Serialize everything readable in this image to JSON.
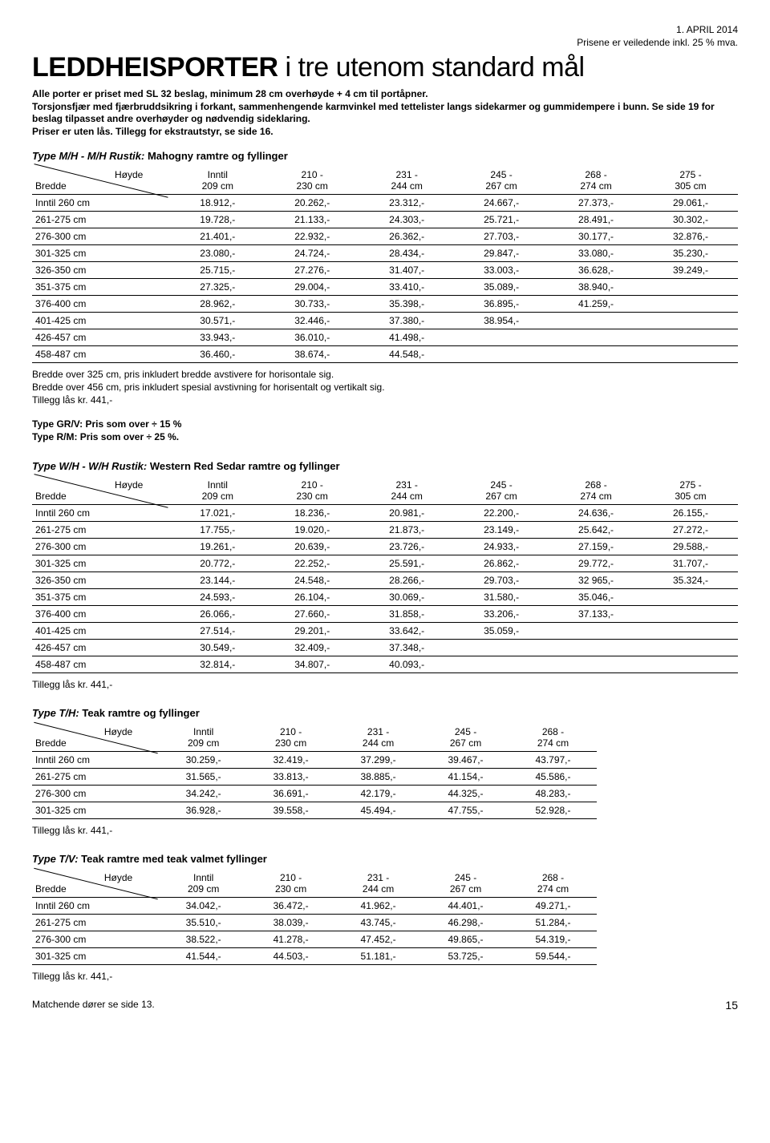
{
  "header": {
    "date": "1. APRIL 2014",
    "priceNote": "Prisene er veiledende inkl. 25 % mva."
  },
  "title": {
    "strong": "LEDDHEISPORTER",
    "rest": " i tre utenom standard mål"
  },
  "intro": [
    "Alle porter er priset med SL 32 beslag, minimum 28 cm overhøyde + 4 cm til portåpner.",
    "Torsjonsfjær med fjærbruddsikring i forkant, sammenhengende karmvinkel med tettelister langs sidekarmer og gummidempere i bunn. Se side 19 for beslag tilpasset andre overhøyder og nødvendig sideklaring.",
    "Priser er uten lås.  Tillegg for ekstrautstyr, se side 16."
  ],
  "tables": {
    "mh": {
      "title_bold": "Type M/H - M/H Rustik:",
      "title_rest": " Mahogny ramtre og fyllinger",
      "cols": [
        {
          "l1": "Høyde",
          "l2": "Bredde"
        },
        {
          "l1": "Inntil",
          "l2": "209 cm"
        },
        {
          "l1": "210 -",
          "l2": "230 cm"
        },
        {
          "l1": "231 -",
          "l2": "244 cm"
        },
        {
          "l1": "245 -",
          "l2": "267 cm"
        },
        {
          "l1": "268 -",
          "l2": "274 cm"
        },
        {
          "l1": "275 -",
          "l2": "305 cm"
        }
      ],
      "rows": [
        [
          "Inntil 260 cm",
          "18.912,-",
          "20.262,-",
          "23.312,-",
          "24.667,-",
          "27.373,-",
          "29.061,-"
        ],
        [
          "261-275 cm",
          "19.728,-",
          "21.133,-",
          "24.303,-",
          "25.721,-",
          "28.491,-",
          "30.302,-"
        ],
        [
          "276-300 cm",
          "21.401,-",
          "22.932,-",
          "26.362,-",
          "27.703,-",
          "30.177,-",
          "32.876,-"
        ],
        [
          "301-325 cm",
          "23.080,-",
          "24.724,-",
          "28.434,-",
          "29.847,-",
          "33.080,-",
          "35.230,-"
        ],
        [
          "326-350 cm",
          "25.715,-",
          "27.276,-",
          "31.407,-",
          "33.003,-",
          "36.628,-",
          "39.249,-"
        ],
        [
          "351-375 cm",
          "27.325,-",
          "29.004,-",
          "33.410,-",
          "35.089,-",
          "38.940,-",
          ""
        ],
        [
          "376-400 cm",
          "28.962,-",
          "30.733,-",
          "35.398,-",
          "36.895,-",
          "41.259,-",
          ""
        ],
        [
          "401-425 cm",
          "30.571,-",
          "32.446,-",
          "37.380,-",
          "38.954,-",
          "",
          ""
        ],
        [
          "426-457 cm",
          "33.943,-",
          "36.010,-",
          "41.498,-",
          "",
          "",
          ""
        ],
        [
          "458-487 cm",
          "36.460,-",
          "38.674,-",
          "44.548,-",
          "",
          "",
          ""
        ]
      ],
      "notes": [
        "Bredde over 325 cm, pris inkludert bredde avstivere for horisontale sig.",
        "Bredde over 456 cm, pris inkludert spesial avstivning for horisentalt og vertikalt sig.",
        "Tillegg lås kr. 441,-"
      ],
      "after": [
        "Type GR/V: Pris som over ÷ 15 %",
        "Type R/M: Pris som over ÷ 25 %."
      ]
    },
    "wh": {
      "title_bold": "Type W/H - W/H Rustik:",
      "title_rest": " Western Red Sedar ramtre og fyllinger",
      "cols": [
        {
          "l1": "Høyde",
          "l2": "Bredde"
        },
        {
          "l1": "Inntil",
          "l2": "209 cm"
        },
        {
          "l1": "210 -",
          "l2": "230 cm"
        },
        {
          "l1": "231 -",
          "l2": "244 cm"
        },
        {
          "l1": "245 -",
          "l2": "267 cm"
        },
        {
          "l1": "268 -",
          "l2": "274 cm"
        },
        {
          "l1": "275 -",
          "l2": "305 cm"
        }
      ],
      "rows": [
        [
          "Inntil 260 cm",
          "17.021,-",
          "18.236,-",
          "20.981,-",
          "22.200,-",
          "24.636,-",
          "26.155,-"
        ],
        [
          "261-275 cm",
          "17.755,-",
          "19.020,-",
          "21.873,-",
          "23.149,-",
          "25.642,-",
          "27.272,-"
        ],
        [
          "276-300 cm",
          "19.261,-",
          "20.639,-",
          "23.726,-",
          "24.933,-",
          "27.159,-",
          "29.588,-"
        ],
        [
          "301-325 cm",
          "20.772,-",
          "22.252,-",
          "25.591,-",
          "26.862,-",
          "29.772,-",
          "31.707,-"
        ],
        [
          "326-350 cm",
          "23.144,-",
          "24.548,-",
          "28.266,-",
          "29.703,-",
          "32 965,-",
          "35.324,-"
        ],
        [
          "351-375 cm",
          "24.593,-",
          "26.104,-",
          "30.069,-",
          "31.580,-",
          "35.046,-",
          ""
        ],
        [
          "376-400 cm",
          "26.066,-",
          "27.660,-",
          "31.858,-",
          "33.206,-",
          "37.133,-",
          ""
        ],
        [
          "401-425 cm",
          "27.514,-",
          "29.201,-",
          "33.642,-",
          "35.059,-",
          "",
          ""
        ],
        [
          "426-457 cm",
          "30.549,-",
          "32.409,-",
          "37.348,-",
          "",
          "",
          ""
        ],
        [
          "458-487 cm",
          "32.814,-",
          "34.807,-",
          "40.093,-",
          "",
          "",
          ""
        ]
      ],
      "notes": [
        "Tillegg lås kr. 441,-"
      ]
    },
    "th": {
      "title_bold": "Type T/H:",
      "title_rest": " Teak ramtre og fyllinger",
      "cols": [
        {
          "l1": "Høyde",
          "l2": "Bredde"
        },
        {
          "l1": "Inntil",
          "l2": "209 cm"
        },
        {
          "l1": "210 -",
          "l2": "230 cm"
        },
        {
          "l1": "231 -",
          "l2": "244 cm"
        },
        {
          "l1": "245 -",
          "l2": "267 cm"
        },
        {
          "l1": "268 -",
          "l2": "274 cm"
        }
      ],
      "rows": [
        [
          "Inntil 260 cm",
          "30.259,-",
          "32.419,-",
          "37.299,-",
          "39.467,-",
          "43.797,-"
        ],
        [
          "261-275 cm",
          "31.565,-",
          "33.813,-",
          "38.885,-",
          "41.154,-",
          "45.586,-"
        ],
        [
          "276-300 cm",
          "34.242,-",
          "36.691,-",
          "42.179,-",
          "44.325,-",
          "48.283,-"
        ],
        [
          "301-325 cm",
          "36.928,-",
          "39.558,-",
          "45.494,-",
          "47.755,-",
          "52.928,-"
        ]
      ],
      "notes": [
        "Tillegg lås kr. 441,-"
      ]
    },
    "tv": {
      "title_bold": "Type T/V:",
      "title_rest": " Teak ramtre med teak valmet fyllinger",
      "cols": [
        {
          "l1": "Høyde",
          "l2": "Bredde"
        },
        {
          "l1": "Inntil",
          "l2": "209 cm"
        },
        {
          "l1": "210 -",
          "l2": "230 cm"
        },
        {
          "l1": "231 -",
          "l2": "244 cm"
        },
        {
          "l1": "245 -",
          "l2": "267 cm"
        },
        {
          "l1": "268 -",
          "l2": "274 cm"
        }
      ],
      "rows": [
        [
          "Inntil 260 cm",
          "34.042,-",
          "36.472,-",
          "41.962,-",
          "44.401,-",
          "49.271,-"
        ],
        [
          "261-275 cm",
          "35.510,-",
          "38.039,-",
          "43.745,-",
          "46.298,-",
          "51.284,-"
        ],
        [
          "276-300 cm",
          "38.522,-",
          "41.278,-",
          "47.452,-",
          "49.865,-",
          "54.319,-"
        ],
        [
          "301-325 cm",
          "41.544,-",
          "44.503,-",
          "51.181,-",
          "53.725,-",
          "59.544,-"
        ]
      ],
      "notes": [
        "Tillegg lås kr. 441,-"
      ]
    }
  },
  "footer": {
    "left": "Matchende dører se side 13.",
    "page": "15"
  }
}
